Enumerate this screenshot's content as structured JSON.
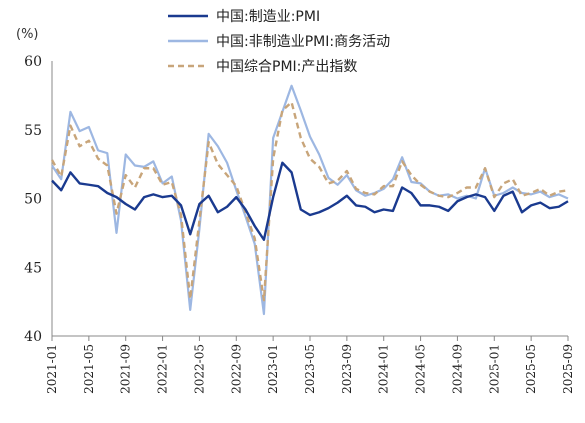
{
  "chart_data": {
    "type": "line",
    "ylabel": "(%)",
    "ylim": [
      40,
      60
    ],
    "yticks": [
      "40",
      "45",
      "50",
      "55",
      "60"
    ],
    "xticks": [
      "2021-01",
      "2021-05",
      "2021-09",
      "2022-01",
      "2022-05",
      "2022-09",
      "2023-01",
      "2023-05",
      "2023-09",
      "2024-01",
      "2024-05",
      "2024-09",
      "2025-01",
      "2025-05",
      "2025-09"
    ],
    "x": [
      "2021-01",
      "2021-02",
      "2021-03",
      "2021-04",
      "2021-05",
      "2021-06",
      "2021-07",
      "2021-08",
      "2021-09",
      "2021-10",
      "2021-11",
      "2021-12",
      "2022-01",
      "2022-02",
      "2022-03",
      "2022-04",
      "2022-05",
      "2022-06",
      "2022-07",
      "2022-08",
      "2022-09",
      "2022-10",
      "2022-11",
      "2022-12",
      "2023-01",
      "2023-02",
      "2023-03",
      "2023-04",
      "2023-05",
      "2023-06",
      "2023-07",
      "2023-08",
      "2023-09",
      "2023-10",
      "2023-11",
      "2023-12",
      "2024-01",
      "2024-02",
      "2024-03",
      "2024-04",
      "2024-05",
      "2024-06",
      "2024-07",
      "2024-08",
      "2024-09",
      "2024-10",
      "2024-11",
      "2024-12",
      "2025-01",
      "2025-02",
      "2025-03",
      "2025-04",
      "2025-05",
      "2025-06",
      "2025-07",
      "2025-08",
      "2025-09"
    ],
    "grid": false,
    "legend_position": "top",
    "series": [
      {
        "name": "中国:制造业:PMI",
        "color": "#1a3a8f",
        "style": "solid",
        "values": [
          51.3,
          50.6,
          51.9,
          51.1,
          51.0,
          50.9,
          50.4,
          50.1,
          49.6,
          49.2,
          50.1,
          50.3,
          50.1,
          50.2,
          49.5,
          47.4,
          49.6,
          50.2,
          49.0,
          49.4,
          50.1,
          49.2,
          48.0,
          47.0,
          50.1,
          52.6,
          51.9,
          49.2,
          48.8,
          49.0,
          49.3,
          49.7,
          50.2,
          49.5,
          49.4,
          49.0,
          49.2,
          49.1,
          50.8,
          50.4,
          49.5,
          49.5,
          49.4,
          49.1,
          49.8,
          50.1,
          50.3,
          50.1,
          49.1,
          50.2,
          50.5,
          49.0,
          49.5,
          49.7,
          49.3,
          49.4,
          49.8
        ]
      },
      {
        "name": "中国:非制造业PMI:商务活动",
        "color": "#9db7e2",
        "style": "solid",
        "values": [
          52.4,
          51.4,
          56.3,
          54.9,
          55.2,
          53.5,
          53.3,
          47.5,
          53.2,
          52.4,
          52.3,
          52.7,
          51.1,
          51.6,
          48.4,
          41.9,
          47.8,
          54.7,
          53.8,
          52.6,
          50.6,
          48.7,
          46.7,
          41.6,
          54.4,
          56.3,
          58.2,
          56.4,
          54.5,
          53.2,
          51.5,
          51.0,
          51.7,
          50.6,
          50.2,
          50.4,
          50.7,
          51.4,
          53.0,
          51.2,
          51.1,
          50.5,
          50.2,
          50.3,
          50.0,
          50.2,
          50.0,
          52.2,
          50.2,
          50.4,
          50.8,
          50.4,
          50.3,
          50.5,
          50.1,
          50.3,
          50.0
        ]
      },
      {
        "name": "中国综合PMI:产出指数",
        "color": "#c8a57a",
        "style": "dashed",
        "values": [
          52.8,
          51.6,
          55.3,
          53.8,
          54.2,
          52.9,
          52.4,
          48.9,
          51.7,
          50.8,
          52.2,
          52.2,
          51.0,
          51.2,
          48.8,
          42.7,
          48.4,
          54.1,
          52.5,
          51.7,
          50.9,
          49.0,
          47.1,
          42.6,
          52.9,
          56.4,
          57.0,
          54.4,
          52.9,
          52.3,
          51.1,
          51.3,
          52.0,
          50.7,
          50.4,
          50.3,
          50.9,
          50.9,
          52.7,
          51.7,
          51.0,
          50.5,
          50.2,
          50.1,
          50.4,
          50.8,
          50.8,
          52.2,
          50.1,
          51.1,
          51.4,
          50.2,
          50.4,
          50.7,
          50.2,
          50.5,
          50.6
        ]
      }
    ]
  }
}
